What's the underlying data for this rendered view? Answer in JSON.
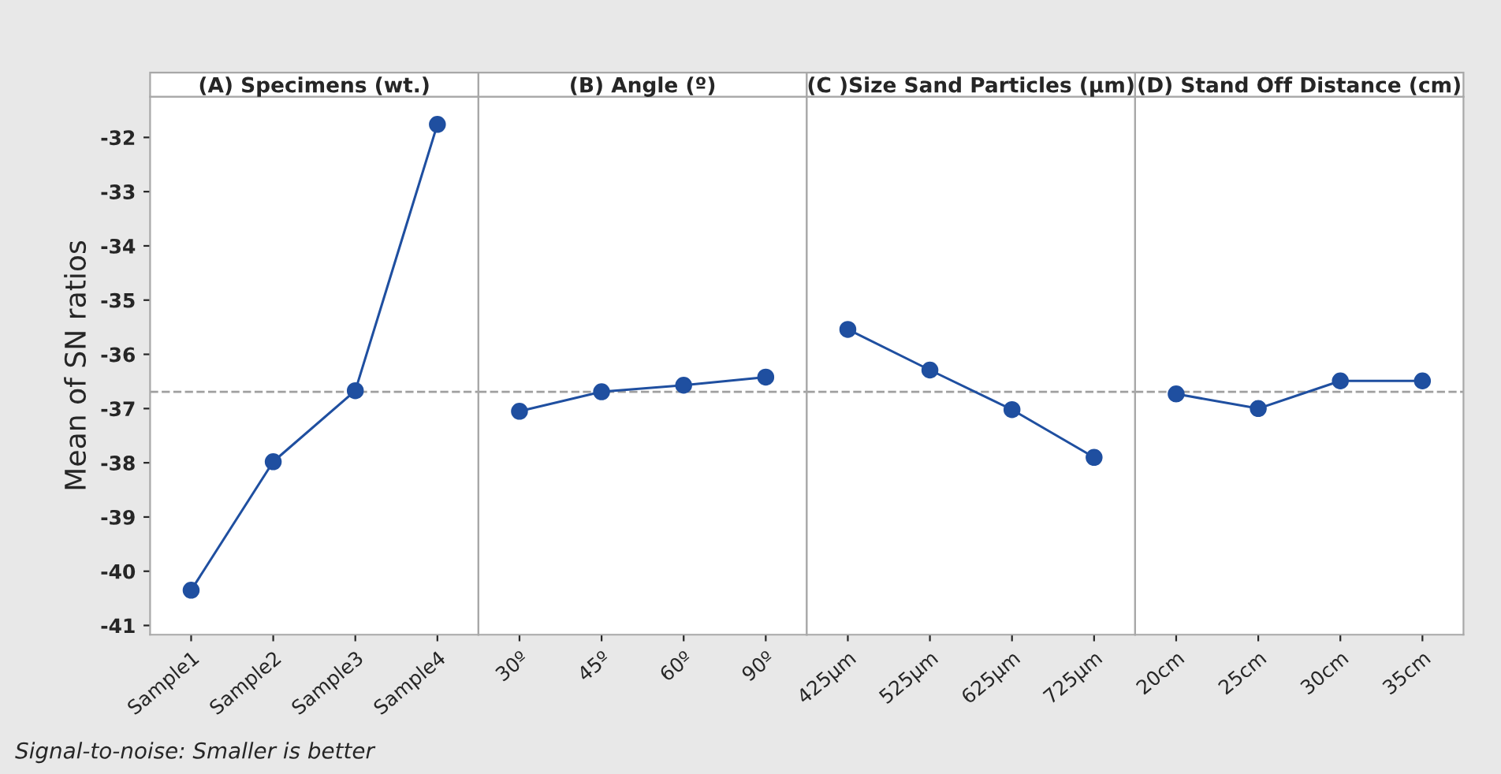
{
  "chart_data": [
    {
      "type": "line",
      "title": "(A) Specimens (wt.)",
      "ylabel": "Mean of SN ratios",
      "categories": [
        "Sample1",
        "Sample2",
        "Sample3",
        "Sample4"
      ],
      "series": [
        {
          "color": "#1f4fa0",
          "values": [
            -40.35,
            -37.98,
            -36.67,
            -31.76
          ]
        }
      ],
      "ylim": [
        -41.17,
        -31.25
      ],
      "yticks": [
        -41,
        -40,
        -39,
        -38,
        -37,
        -36,
        -35,
        -34,
        -33,
        -32
      ],
      "marker": "circle",
      "line_style": "solid",
      "grid": false,
      "ref_lines": [
        {
          "axis": "y",
          "value": -36.69,
          "color": "#a0a0a0",
          "line_style": "dashed"
        }
      ],
      "annotations": [
        "Signal-to-noise: Smaller is better"
      ]
    },
    {
      "type": "line",
      "title": "(B) Angle (º)",
      "categories": [
        "30º",
        "45º",
        "60º",
        "90º"
      ],
      "series": [
        {
          "color": "#1f4fa0",
          "values": [
            -37.05,
            -36.69,
            -36.57,
            -36.42
          ]
        }
      ],
      "ylim": [
        -41.17,
        -31.25
      ],
      "yticks": [
        -41,
        -40,
        -39,
        -38,
        -37,
        -36,
        -35,
        -34,
        -33,
        -32
      ],
      "tick_labels": "x",
      "marker": "circle",
      "line_style": "solid",
      "grid": false,
      "ref_lines": [
        {
          "axis": "y",
          "value": -36.69,
          "color": "#a0a0a0",
          "line_style": "dashed"
        }
      ]
    },
    {
      "type": "line",
      "title": "(C )Size Sand Particles (µm)",
      "categories": [
        "425µm",
        "525µm",
        "625µm",
        "725µm"
      ],
      "series": [
        {
          "color": "#1f4fa0",
          "values": [
            -35.54,
            -36.29,
            -37.02,
            -37.9
          ]
        }
      ],
      "ylim": [
        -41.17,
        -31.25
      ],
      "yticks": [
        -41,
        -40,
        -39,
        -38,
        -37,
        -36,
        -35,
        -34,
        -33,
        -32
      ],
      "tick_labels": "x",
      "marker": "circle",
      "line_style": "solid",
      "grid": false,
      "ref_lines": [
        {
          "axis": "y",
          "value": -36.69,
          "color": "#a0a0a0",
          "line_style": "dashed"
        }
      ]
    },
    {
      "type": "line",
      "title": "(D) Stand Off Distance (cm)",
      "categories": [
        "20cm",
        "25cm",
        "30cm",
        "35cm"
      ],
      "series": [
        {
          "color": "#1f4fa0",
          "values": [
            -36.73,
            -37.0,
            -36.49,
            -36.49
          ]
        }
      ],
      "ylim": [
        -41.17,
        -31.25
      ],
      "yticks": [
        -41,
        -40,
        -39,
        -38,
        -37,
        -36,
        -35,
        -34,
        -33,
        -32
      ],
      "tick_labels": "x",
      "marker": "circle",
      "line_style": "solid",
      "grid": false,
      "ref_lines": [
        {
          "axis": "y",
          "value": -36.69,
          "color": "#a0a0a0",
          "line_style": "dashed"
        }
      ]
    }
  ]
}
